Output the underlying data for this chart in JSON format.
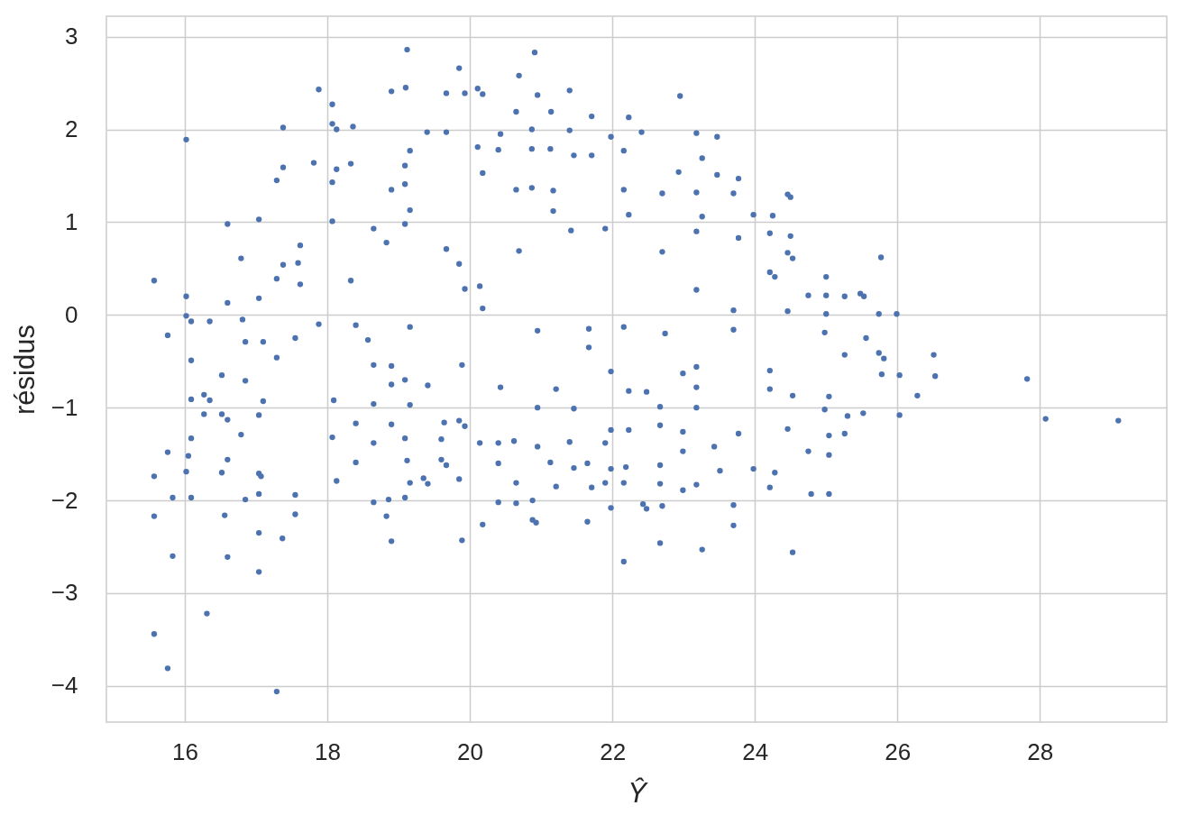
{
  "chart_data": {
    "type": "scatter",
    "xlabel": "Ŷ",
    "ylabel": "résidus",
    "color": "#4c72b0",
    "marker": "circle",
    "grid": true,
    "xlim": [
      14.9,
      29.78
    ],
    "ylim": [
      -4.39,
      3.22
    ],
    "xticks": [
      16,
      18,
      20,
      22,
      24,
      26,
      28
    ],
    "yticks": [
      {
        "value": -4,
        "label": "−4"
      },
      {
        "value": -3,
        "label": "−3"
      },
      {
        "value": -2,
        "label": "−2"
      },
      {
        "value": -1,
        "label": "−1"
      },
      0,
      1,
      2,
      3
    ],
    "x": [
      17.88,
      18.07,
      18.07,
      18.13,
      18.36,
      17.38,
      16.02,
      17.38,
      17.81,
      17.29,
      18.13,
      18.33,
      18.07,
      16.6,
      17.04,
      18.07,
      17.62,
      16.79,
      17.38,
      17.59,
      15.57,
      17.29,
      17.62,
      16.02,
      16.6,
      17.04,
      16.02,
      16.09,
      16.35,
      16.81,
      17.88,
      15.76,
      16.85,
      17.1,
      17.55,
      16.09,
      16.52,
      17.29,
      18.33,
      18.57,
      18.65,
      18.9,
      16.85,
      16.09,
      16.27,
      16.35,
      17.1,
      16.27,
      16.52,
      16.6,
      17.04,
      16.09,
      16.79,
      15.76,
      16.05,
      16.6,
      15.57,
      16.02,
      16.52,
      17.04,
      17.07,
      15.83,
      16.09,
      16.85,
      17.04,
      17.55,
      15.57,
      16.56,
      17.55,
      17.04,
      17.37,
      15.83,
      16.6,
      17.04,
      16.31,
      15.57,
      15.76,
      17.29,
      18.65,
      18.9,
      18.83,
      18.86,
      18.13,
      18.4,
      18.07,
      18.4,
      19.12,
      19.85,
      19.1,
      19.67,
      19.93,
      20.11,
      20.18,
      20.91,
      20.69,
      20.95,
      21.4,
      20.65,
      21.14,
      21.71,
      22.23,
      22.95,
      19.4,
      19.67,
      20.43,
      20.87,
      21.4,
      21.98,
      22.41,
      19.16,
      22.16,
      22.93,
      22.7,
      19.09,
      19.09,
      21.71,
      21.46,
      20.87,
      21.13,
      20.11,
      20.4,
      20.18,
      20.65,
      20.87,
      21.17,
      22.16,
      19.16,
      21.17,
      22.23,
      19.09,
      21.42,
      21.9,
      19.67,
      20.69,
      22.7,
      19.85,
      20.14,
      19.93,
      19.16,
      20.95,
      21.67,
      22.74,
      21.67,
      19.89,
      21.98,
      22.16,
      19.09,
      19.41,
      19.16,
      19.64,
      19.85,
      19.93,
      19.09,
      19.6,
      19.12,
      19.6,
      19.67,
      19.16,
      19.35,
      19.41,
      19.85,
      19.09,
      19.89,
      20.18,
      20.4,
      20.65,
      20.88,
      20.88,
      20.93,
      21.65,
      21.98,
      22.16,
      22.67,
      22.43,
      22.48,
      22.7,
      20.14,
      20.4,
      20.62,
      20.95,
      21.4,
      21.9,
      20.4,
      21.13,
      21.46,
      21.65,
      21.98,
      22.19,
      22.67,
      20.65,
      21.21,
      21.71,
      21.9,
      22.16,
      22.67,
      22.99,
      21.98,
      22.23,
      22.67,
      22.99,
      20.95,
      21.46,
      21.21,
      20.43,
      22.48,
      22.23,
      22.67,
      23.18,
      23.47,
      23.26,
      23.47,
      23.77,
      23.18,
      23.7,
      24.46,
      24.5,
      23.98,
      24.25,
      23.26,
      23.18,
      23.77,
      24.21,
      24.5,
      24.46,
      24.53,
      25.77,
      25.0,
      24.21,
      24.28,
      24.75,
      25.0,
      25.26,
      25.48,
      25.53,
      25.74,
      25.99,
      24.46,
      25.0,
      24.98,
      25.56,
      26.51,
      25.26,
      25.74,
      25.81,
      24.21,
      23.7,
      23.18,
      27.82,
      26.53,
      26.03,
      26.28,
      26.03,
      28.08,
      29.1,
      25.52,
      25.3,
      25.26,
      25.04,
      25.04,
      24.79,
      25.04,
      24.53,
      23.26,
      23.7,
      23.7,
      23.51,
      23.98,
      24.28,
      24.21,
      23.18,
      24.75,
      24.46,
      24.98,
      24.53,
      25.04,
      25.78,
      23.18,
      23.77,
      23.43,
      18.65,
      18.9,
      18.83,
      18.4,
      18.9,
      18.9,
      18.65,
      18.09,
      18.9,
      18.65,
      20.18,
      23.18,
      24.21,
      23.7,
      23.18,
      22.99,
      22.99
    ],
    "values": [
      2.43,
      2.27,
      2.06,
      2.0,
      2.03,
      2.02,
      1.89,
      1.59,
      1.64,
      1.45,
      1.57,
      1.63,
      1.43,
      0.98,
      1.03,
      1.01,
      0.75,
      0.61,
      0.54,
      0.56,
      0.37,
      0.39,
      0.33,
      0.2,
      0.13,
      0.18,
      -0.01,
      -0.07,
      -0.07,
      -0.05,
      -0.1,
      -0.22,
      -0.29,
      -0.29,
      -0.25,
      -0.49,
      -0.65,
      -0.46,
      0.37,
      -0.27,
      0.93,
      2.41,
      -0.71,
      -0.91,
      -0.86,
      -0.92,
      -0.93,
      -1.07,
      -1.07,
      -1.13,
      -1.08,
      -1.33,
      -1.29,
      -1.48,
      -1.52,
      -1.56,
      -1.74,
      -1.69,
      -1.7,
      -1.71,
      -1.74,
      -1.97,
      -1.97,
      -1.99,
      -1.93,
      -1.94,
      -2.17,
      -2.16,
      -2.15,
      -2.35,
      -2.41,
      -2.6,
      -2.61,
      -2.77,
      -3.22,
      -3.44,
      -3.81,
      -4.06,
      -2.02,
      -2.44,
      -2.17,
      -1.99,
      -1.79,
      -1.59,
      -1.32,
      -1.17,
      2.86,
      2.66,
      2.45,
      2.39,
      2.39,
      2.44,
      2.38,
      2.83,
      2.58,
      2.37,
      2.42,
      2.19,
      2.19,
      2.14,
      2.13,
      2.36,
      1.97,
      1.97,
      1.95,
      2.0,
      1.99,
      1.92,
      1.97,
      1.77,
      1.77,
      1.54,
      1.31,
      1.61,
      1.41,
      1.72,
      1.72,
      1.79,
      1.79,
      1.81,
      1.78,
      1.53,
      1.35,
      1.37,
      1.34,
      1.35,
      1.13,
      1.12,
      1.08,
      0.98,
      0.91,
      0.93,
      0.71,
      0.69,
      0.68,
      0.55,
      0.31,
      0.28,
      -0.13,
      -0.17,
      -0.15,
      -0.2,
      -0.35,
      -0.54,
      -0.61,
      -0.13,
      -0.7,
      -0.76,
      -0.97,
      -1.16,
      -1.14,
      -1.2,
      -1.33,
      -1.34,
      -1.57,
      -1.56,
      -1.62,
      -1.81,
      -1.76,
      -1.82,
      -1.77,
      -1.97,
      -2.43,
      -2.26,
      -2.02,
      -2.03,
      -2.0,
      -2.21,
      -2.24,
      -2.23,
      -2.08,
      -2.66,
      -2.46,
      -2.04,
      -2.09,
      -2.06,
      -1.38,
      -1.38,
      -1.36,
      -1.42,
      -1.37,
      -1.38,
      -1.6,
      -1.59,
      -1.65,
      -1.6,
      -1.66,
      -1.64,
      -1.62,
      -1.81,
      -1.85,
      -1.86,
      -1.81,
      -1.81,
      -1.82,
      -1.89,
      -1.24,
      -1.24,
      -1.19,
      -1.47,
      -1.0,
      -1.01,
      -0.8,
      -0.78,
      -0.83,
      -0.82,
      -0.99,
      1.96,
      1.92,
      1.69,
      1.51,
      1.47,
      1.32,
      1.31,
      1.3,
      1.27,
      1.08,
      1.07,
      1.06,
      0.9,
      0.83,
      0.88,
      0.85,
      0.67,
      0.61,
      0.62,
      0.41,
      0.46,
      0.41,
      0.21,
      0.21,
      0.2,
      0.23,
      0.2,
      0.01,
      0.01,
      0.04,
      0.01,
      -0.19,
      -0.25,
      -0.43,
      -0.43,
      -0.41,
      -0.47,
      -0.6,
      0.05,
      0.27,
      -0.69,
      -0.66,
      -0.65,
      -0.87,
      -1.08,
      -1.12,
      -1.14,
      -1.06,
      -1.09,
      -1.28,
      -1.3,
      -1.51,
      -1.93,
      -1.93,
      -2.56,
      -2.53,
      -2.05,
      -2.27,
      -1.68,
      -1.66,
      -1.7,
      -1.86,
      -1.83,
      -1.47,
      -1.23,
      -1.02,
      -0.87,
      -0.88,
      -0.64,
      -1.0,
      -1.28,
      -1.42,
      -0.54,
      -0.55,
      0.78,
      -0.11,
      1.35,
      -0.75,
      -0.96,
      -0.92,
      -1.18,
      -1.38,
      0.07,
      -0.78,
      -0.8,
      -0.16,
      -0.56,
      -0.63,
      -1.26
    ]
  }
}
